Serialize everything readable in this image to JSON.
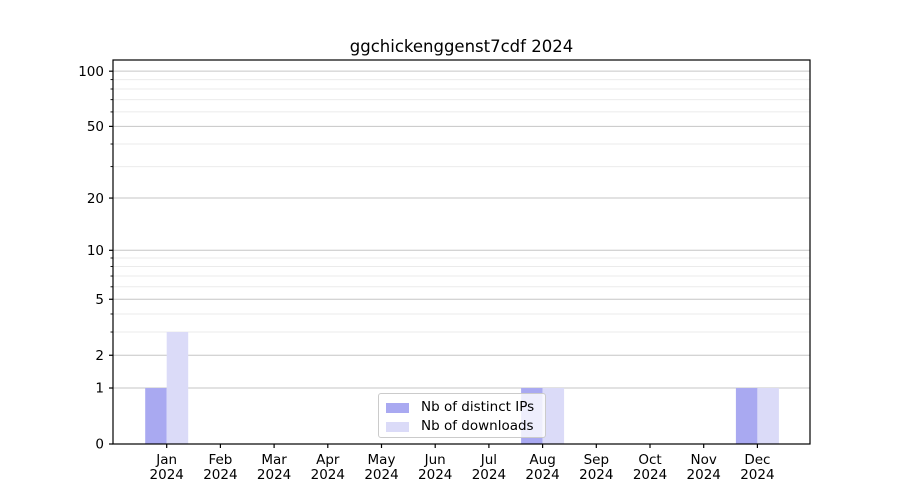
{
  "title": "ggchickenggenst7cdf 2024",
  "chart_data": {
    "type": "bar",
    "title": "ggchickenggenst7cdf 2024",
    "categories": [
      "Jan 2024",
      "Feb 2024",
      "Mar 2024",
      "Apr 2024",
      "May 2024",
      "Jun 2024",
      "Jul 2024",
      "Aug 2024",
      "Sep 2024",
      "Oct 2024",
      "Nov 2024",
      "Dec 2024"
    ],
    "series": [
      {
        "name": "Nb of distinct IPs",
        "color": "#a9a9f1",
        "values": [
          1,
          0,
          0,
          0,
          0,
          0,
          0,
          1,
          0,
          0,
          0,
          1
        ]
      },
      {
        "name": "Nb of downloads",
        "color": "#dbdbf8",
        "values": [
          3,
          0,
          0,
          0,
          0,
          0,
          0,
          1,
          0,
          0,
          0,
          1
        ]
      }
    ],
    "xlabel": "",
    "ylabel": "",
    "yscale": "log1p",
    "ylim": [
      0,
      115
    ],
    "y_major_ticks": [
      0,
      1,
      2,
      5,
      10,
      20,
      50,
      100
    ],
    "y_minor_ticks": [
      3,
      4,
      6,
      7,
      8,
      9,
      30,
      40,
      60,
      70,
      80,
      90
    ],
    "grid": true,
    "legend_position": "lower center"
  },
  "legend": {
    "items": [
      {
        "label": "Nb of distinct IPs",
        "color": "#a9a9f1"
      },
      {
        "label": "Nb of downloads",
        "color": "#dbdbf8"
      }
    ]
  },
  "colors": {
    "background": "#ffffff",
    "grid_major": "#c6c6c6",
    "grid_minor": "#ebebeb",
    "spine": "#000000",
    "bar_distinct_ips": "#a9a9f1",
    "bar_downloads": "#dbdbf8",
    "text": "#000000"
  }
}
